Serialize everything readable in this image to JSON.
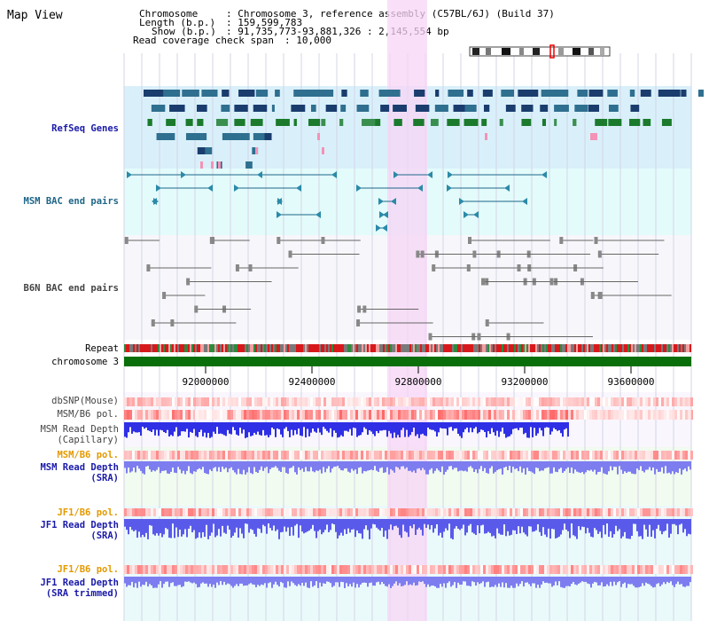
{
  "view_title": "Map View",
  "info": {
    "chromosome_label": "Chromosome",
    "chromosome_value": ": Chromosome 3, reference assembly (C57BL/6J) (Build 37)",
    "length_label": "Length (b.p.)",
    "length_value": ": 159,599,783",
    "show_label": "Show (b.p.)",
    "show_value": ": 91,735,773-93,881,326 : 2,145,554 bp",
    "coverage_label": "Read coverage check span",
    "coverage_value": ": 10,000"
  },
  "tracks": {
    "refseq": "RefSeq Genes",
    "msm_bac": "MSM BAC end pairs",
    "b6n_bac": "B6N BAC end pairs",
    "repeat": "Repeat",
    "chromosome": "chromosome 3",
    "dbsnp": "dbSNP(Mouse)",
    "msm_pol": "MSM/B6 pol.",
    "msm_depth_cap_1": "MSM Read Depth",
    "msm_depth_cap_2": "(Capillary)",
    "msm_pol2": "MSM/B6 pol.",
    "msm_depth_sra_1": "MSM Read Depth",
    "msm_depth_sra_2": "(SRA)",
    "jf1_pol": "JF1/B6 pol.",
    "jf1_depth_sra_1": "JF1 Read Depth",
    "jf1_depth_sra_2": "(SRA)",
    "jf1_pol2": "JF1/B6 pol.",
    "jf1_depth_trim_1": "JF1 Read Depth",
    "jf1_depth_trim_2": "(SRA trimmed)"
  },
  "axis_ticks": [
    "92000000",
    "92400000",
    "92800000",
    "93200000",
    "93600000"
  ],
  "colors": {
    "highlight": "#f7d6f5",
    "refseq_bg": "#d9f0fb",
    "msm_bac_bg": "#e3fbfb",
    "chromosome_bar": "#0a6f0a",
    "snp": "#f5a0a0",
    "depth_dark": "#2f2fe6",
    "depth_light": "#7d7df0"
  }
}
